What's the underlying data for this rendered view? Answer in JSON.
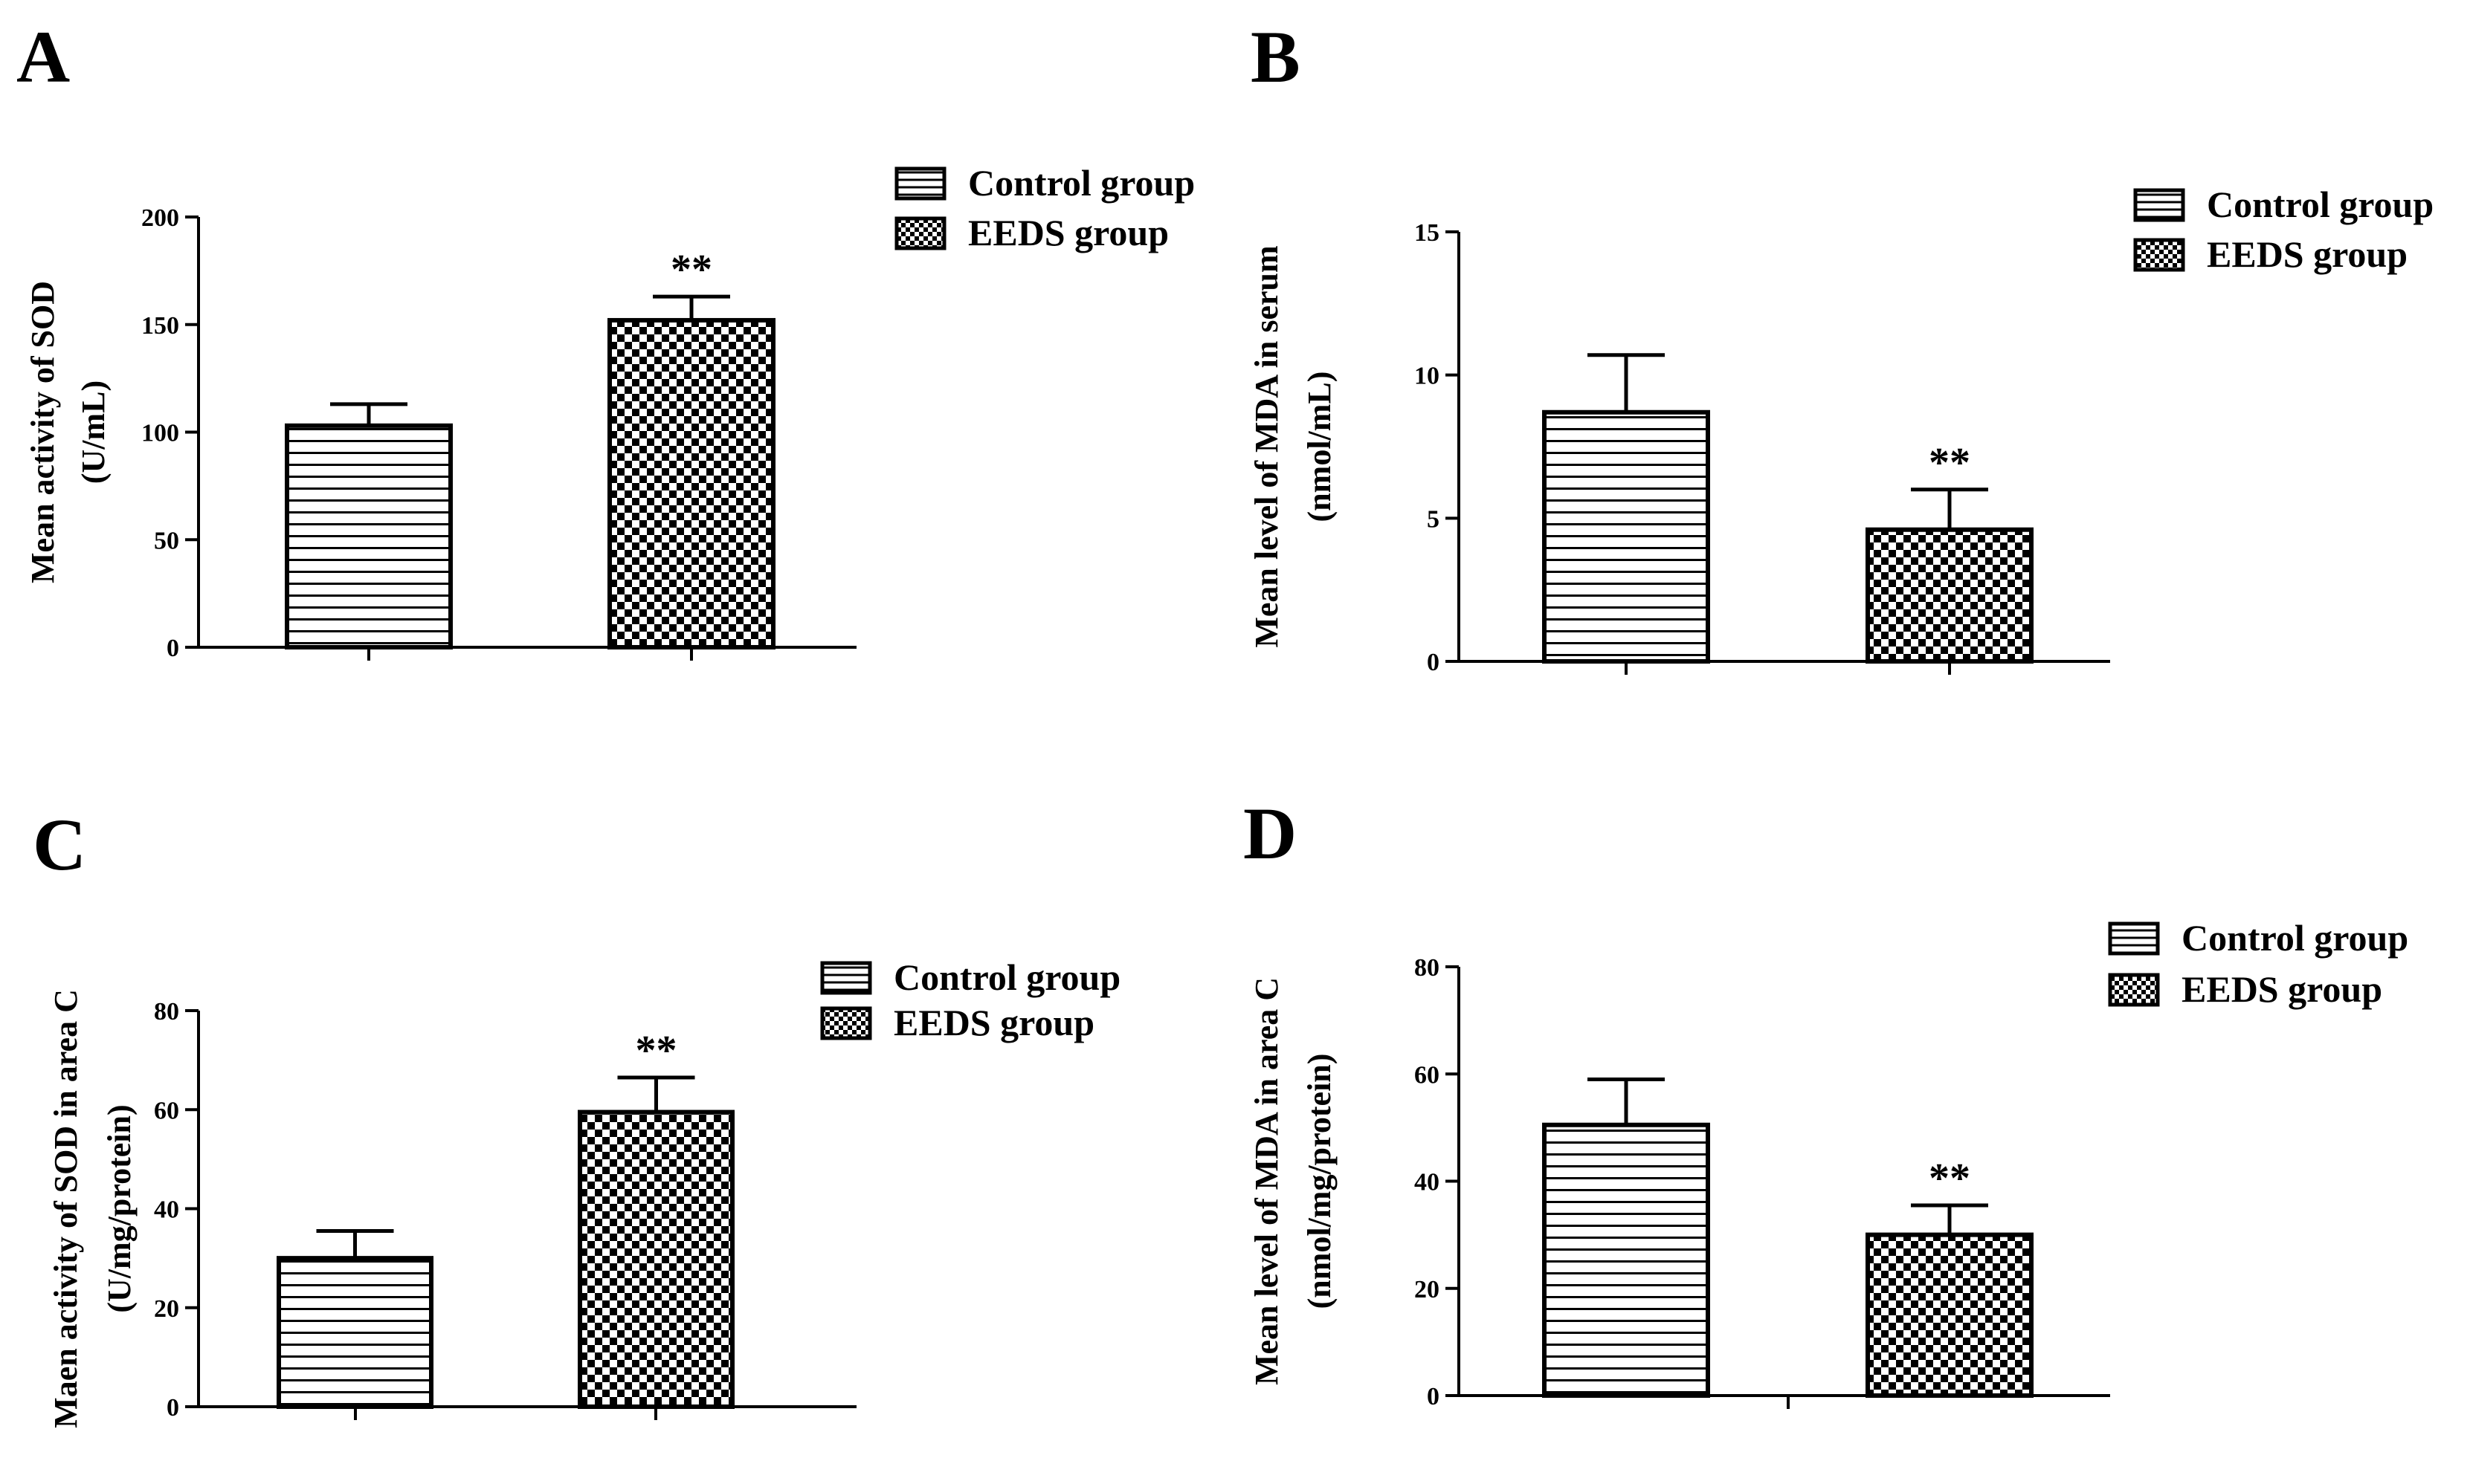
{
  "chart_data": [
    {
      "type": "bar",
      "panel": "A",
      "categories": [
        "Control group",
        "EEDS group"
      ],
      "values": [
        103,
        152
      ],
      "errors": [
        10,
        11
      ],
      "significance": [
        "",
        "**"
      ],
      "ylabel_lines": [
        "Mean activity of SOD",
        "(U/mL)"
      ],
      "xlabel": "",
      "ylim": [
        0,
        200
      ],
      "yticks": [
        0,
        50,
        100,
        150,
        200
      ],
      "legend": [
        "Control group",
        "EEDS group"
      ],
      "legend_position": "top-right"
    },
    {
      "type": "bar",
      "panel": "B",
      "categories": [
        "Control group",
        "EEDS group"
      ],
      "values": [
        8.7,
        4.6
      ],
      "errors": [
        2.0,
        1.4
      ],
      "significance": [
        "",
        "**"
      ],
      "ylabel_lines": [
        "Mean level of MDA in serum",
        "(nmol/mL)"
      ],
      "xlabel": "",
      "ylim": [
        0,
        15
      ],
      "yticks": [
        0,
        5,
        10,
        15
      ],
      "legend": [
        "Control group",
        "EEDS group"
      ],
      "legend_position": "top-right"
    },
    {
      "type": "bar",
      "panel": "C",
      "categories": [
        "Control group",
        "EEDS group"
      ],
      "values": [
        30,
        59.5
      ],
      "errors": [
        5.5,
        7
      ],
      "significance": [
        "",
        "**"
      ],
      "ylabel_lines": [
        "Maen activity of SOD in area C",
        "(U/mg/protein)"
      ],
      "xlabel": "",
      "ylim": [
        0,
        80
      ],
      "yticks": [
        0,
        20,
        40,
        60,
        80
      ],
      "legend": [
        "Control group",
        "EEDS group"
      ],
      "legend_position": "top-right"
    },
    {
      "type": "bar",
      "panel": "D",
      "categories": [
        "Control group",
        "EEDS group"
      ],
      "values": [
        50.5,
        30
      ],
      "errors": [
        8.5,
        5.5
      ],
      "significance": [
        "",
        "**"
      ],
      "ylabel_lines": [
        "Mean level of MDA in area C",
        "(nmol/mg/protein)"
      ],
      "xlabel": "",
      "ylim": [
        0,
        80
      ],
      "yticks": [
        0,
        20,
        40,
        60,
        80
      ],
      "legend": [
        "Control group",
        "EEDS group"
      ],
      "legend_position": "top-right"
    }
  ]
}
